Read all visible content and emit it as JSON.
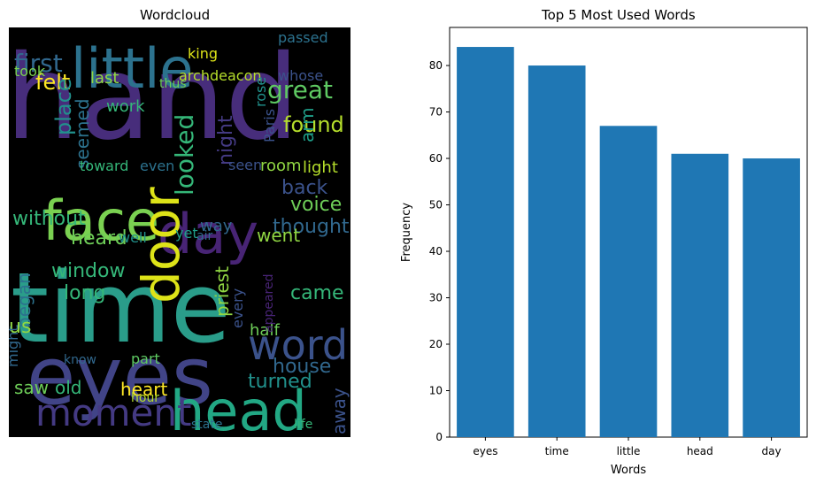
{
  "wordcloud": {
    "title": "Wordcloud",
    "words": [
      {
        "text": "hand",
        "color": "#472d7b"
      },
      {
        "text": "time",
        "color": "#2a9d8a"
      },
      {
        "text": "eyes",
        "color": "#414487"
      },
      {
        "text": "little",
        "color": "#2c728e"
      },
      {
        "text": "day",
        "color": "#482475"
      },
      {
        "text": "face",
        "color": "#7ad151"
      },
      {
        "text": "head",
        "color": "#22a884"
      },
      {
        "text": "door",
        "color": "#dde318"
      },
      {
        "text": "word",
        "color": "#3b528b"
      },
      {
        "text": "moment",
        "color": "#443a83"
      },
      {
        "text": "first",
        "color": "#31688e"
      },
      {
        "text": "great",
        "color": "#5ec962"
      },
      {
        "text": "found",
        "color": "#b5de2b"
      },
      {
        "text": "felt",
        "color": "#fde725"
      },
      {
        "text": "looked",
        "color": "#35b779"
      },
      {
        "text": "without",
        "color": "#35b779"
      },
      {
        "text": "thought",
        "color": "#31688e"
      },
      {
        "text": "voice",
        "color": "#6ece58"
      },
      {
        "text": "heard",
        "color": "#6ece58"
      },
      {
        "text": "window",
        "color": "#35b779"
      },
      {
        "text": "house",
        "color": "#31688e"
      },
      {
        "text": "heart",
        "color": "#fde725"
      },
      {
        "text": "turned",
        "color": "#21918c"
      },
      {
        "text": "long",
        "color": "#35b779"
      },
      {
        "text": "came",
        "color": "#35b779"
      },
      {
        "text": "went",
        "color": "#90d743"
      },
      {
        "text": "place",
        "color": "#21918c"
      },
      {
        "text": "night",
        "color": "#443a83"
      },
      {
        "text": "back",
        "color": "#3b528b"
      },
      {
        "text": "seemed",
        "color": "#2c728e"
      },
      {
        "text": "last",
        "color": "#90d743"
      },
      {
        "text": "work",
        "color": "#35b779"
      },
      {
        "text": "arm",
        "color": "#1f9e89"
      },
      {
        "text": "room",
        "color": "#90d743"
      },
      {
        "text": "light",
        "color": "#b5de2b"
      },
      {
        "text": "way",
        "color": "#31688e"
      },
      {
        "text": "yet",
        "color": "#1f9e89"
      },
      {
        "text": "began",
        "color": "#2c728e"
      },
      {
        "text": "priest",
        "color": "#90d743"
      },
      {
        "text": "saw",
        "color": "#6ece58"
      },
      {
        "text": "old",
        "color": "#35b779"
      },
      {
        "text": "us",
        "color": "#90d743"
      },
      {
        "text": "away",
        "color": "#3b528b"
      },
      {
        "text": "half",
        "color": "#6ece58"
      },
      {
        "text": "king",
        "color": "#dde318"
      },
      {
        "text": "whose",
        "color": "#3b528b"
      },
      {
        "text": "passed",
        "color": "#2c728e"
      },
      {
        "text": "archdeacon",
        "color": "#b5de2b"
      },
      {
        "text": "took",
        "color": "#7ad151"
      },
      {
        "text": "Paris",
        "color": "#3b528b"
      },
      {
        "text": "rose",
        "color": "#21918c"
      },
      {
        "text": "toward",
        "color": "#35b779"
      },
      {
        "text": "even",
        "color": "#2c728e"
      },
      {
        "text": "seen",
        "color": "#3b528b"
      },
      {
        "text": "well",
        "color": "#21918c"
      },
      {
        "text": "every",
        "color": "#3b528b"
      },
      {
        "text": "know",
        "color": "#31688e"
      },
      {
        "text": "part",
        "color": "#5ec962"
      },
      {
        "text": "hour",
        "color": "#b5de2b"
      },
      {
        "text": "state",
        "color": "#2c728e"
      },
      {
        "text": "life",
        "color": "#35b779"
      },
      {
        "text": "might",
        "color": "#31688e"
      },
      {
        "text": "appeared",
        "color": "#482475"
      },
      {
        "text": "thus",
        "color": "#6ece58"
      },
      {
        "text": "air",
        "color": "#31688e"
      }
    ]
  },
  "chart_data": {
    "type": "bar",
    "title": "Top 5 Most Used Words",
    "xlabel": "Words",
    "ylabel": "Frequency",
    "categories": [
      "eyes",
      "time",
      "little",
      "head",
      "day"
    ],
    "values": [
      84,
      80,
      67,
      61,
      60
    ],
    "ylim": [
      0,
      88.2
    ],
    "yticks": [
      0,
      10,
      20,
      30,
      40,
      50,
      60,
      70,
      80
    ],
    "bar_color": "#1f77b4",
    "grid": false,
    "legend": "none"
  }
}
